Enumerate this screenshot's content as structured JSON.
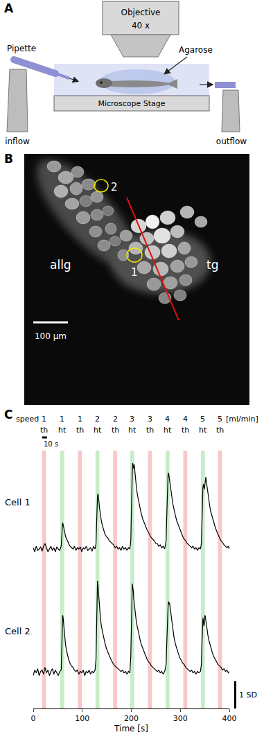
{
  "panel_a": {
    "label": "A",
    "objective": [
      "Objective",
      "40 x"
    ],
    "pipette": "Pipette",
    "agarose": "Agarose",
    "inflow": "inflow",
    "stage": "Microscope Stage",
    "outflow": "outflow"
  },
  "panel_b": {
    "label": "B",
    "rois": [
      {
        "label": "2"
      },
      {
        "label": "1"
      }
    ],
    "regions": [
      "allg",
      "tg"
    ],
    "scale_bar": {
      "length": 100,
      "label": "100 µm"
    }
  },
  "panel_c": {
    "label": "C"
  },
  "chart_data": {
    "type": "line",
    "x_label": "Time [s]",
    "xlim": [
      0,
      400
    ],
    "xticks": [
      0,
      100,
      200,
      300,
      400
    ],
    "ylim": [
      -1.1,
      3.55
    ],
    "yticks": [],
    "y2lim": [
      -1.3,
      3.4
    ],
    "y2ticks": [],
    "tick_labels": "x",
    "grid": false,
    "speed_label": "speed",
    "speed_unit": "[ml/min]",
    "stimuli": [
      {
        "start": 18,
        "end": 26,
        "label": "th",
        "speed": 1,
        "color": "#f8c8c8"
      },
      {
        "start": 55,
        "end": 63,
        "label": "ht",
        "speed": 1,
        "color": "#c8ecc8"
      },
      {
        "start": 91,
        "end": 99,
        "label": "th",
        "speed": 1,
        "color": "#f8c8c8"
      },
      {
        "start": 127,
        "end": 135,
        "label": "ht",
        "speed": 2,
        "color": "#c8ecc8"
      },
      {
        "start": 163,
        "end": 171,
        "label": "th",
        "speed": 2,
        "color": "#f8c8c8"
      },
      {
        "start": 198,
        "end": 206,
        "label": "ht",
        "speed": 3,
        "color": "#c8ecc8"
      },
      {
        "start": 234,
        "end": 242,
        "label": "th",
        "speed": 3,
        "color": "#f8c8c8"
      },
      {
        "start": 270,
        "end": 278,
        "label": "ht",
        "speed": 4,
        "color": "#c8ecc8"
      },
      {
        "start": 306,
        "end": 314,
        "label": "th",
        "speed": 4,
        "color": "#f8c8c8"
      },
      {
        "start": 342,
        "end": 350,
        "label": "ht",
        "speed": 5,
        "color": "#c8ecc8"
      },
      {
        "start": 377,
        "end": 385,
        "label": "th",
        "speed": 5,
        "color": "#f8c8c8"
      }
    ],
    "time_scale_bar": {
      "length": 10,
      "label": "10 s"
    },
    "value_scale_bar": {
      "length": 1,
      "label": "1 SD",
      "axis": "y2"
    },
    "x": [
      0,
      3,
      6,
      9,
      12,
      15,
      18,
      21,
      24,
      27,
      30,
      33,
      36,
      39,
      42,
      45,
      48,
      51,
      54,
      57,
      58,
      59,
      60,
      61,
      62,
      63,
      64,
      66,
      68,
      70,
      72,
      75,
      78,
      81,
      84,
      87,
      90,
      93,
      96,
      99,
      102,
      105,
      108,
      111,
      114,
      117,
      120,
      123,
      126,
      128,
      129,
      130,
      131,
      132,
      133,
      134,
      135,
      137,
      139,
      141,
      143,
      146,
      149,
      152,
      155,
      158,
      161,
      164,
      167,
      170,
      173,
      176,
      179,
      182,
      185,
      188,
      191,
      194,
      197,
      199,
      200,
      201,
      202,
      203,
      204,
      205,
      206,
      207,
      208,
      210,
      212,
      214,
      216,
      218,
      220,
      223,
      226,
      229,
      232,
      235,
      238,
      241,
      244,
      247,
      250,
      253,
      256,
      259,
      262,
      265,
      268,
      271,
      272,
      273,
      274,
      275,
      276,
      277,
      278,
      279,
      281,
      283,
      285,
      287,
      290,
      293,
      296,
      299,
      302,
      305,
      308,
      311,
      314,
      317,
      320,
      323,
      326,
      329,
      332,
      335,
      338,
      341,
      343,
      344,
      345,
      346,
      347,
      348,
      349,
      350,
      351,
      352,
      353,
      354,
      356,
      358,
      360,
      362,
      365,
      368,
      371,
      374,
      377,
      380,
      383,
      386,
      389,
      392,
      395,
      398,
      400
    ],
    "series": [
      {
        "name": "Cell 1",
        "color": "#000000",
        "axis": "y",
        "values": [
          0.05,
          -0.1,
          0.1,
          -0.05,
          0,
          0.08,
          -0.08,
          0.1,
          0.2,
          0.05,
          -0.1,
          0,
          0.1,
          -0.05,
          0.05,
          -0.1,
          0.08,
          0,
          -0.05,
          0.1,
          0.3,
          0.7,
          0.95,
          0.9,
          0.8,
          0.7,
          0.6,
          0.45,
          0.35,
          0.3,
          0.2,
          0.1,
          0.05,
          0,
          0.1,
          -0.05,
          0.05,
          0,
          0.08,
          -0.1,
          0.05,
          0,
          0.1,
          -0.05,
          0,
          0.05,
          -0.08,
          0.1,
          0,
          0.2,
          0.8,
          1.5,
          1.9,
          2.0,
          1.9,
          1.7,
          1.5,
          1.2,
          1.0,
          0.85,
          0.7,
          0.55,
          0.45,
          0.4,
          0.3,
          0.25,
          0.2,
          0.15,
          0.05,
          0.1,
          0,
          0.05,
          -0.05,
          0.1,
          0,
          0.05,
          -0.05,
          0.05,
          0,
          0.3,
          1.2,
          2.2,
          2.8,
          3.1,
          3.0,
          2.9,
          3.05,
          2.8,
          2.6,
          2.3,
          2.0,
          1.8,
          1.6,
          1.45,
          1.3,
          1.1,
          0.95,
          0.8,
          0.7,
          0.6,
          0.5,
          0.4,
          0.35,
          0.3,
          0.2,
          0.2,
          0.1,
          0.15,
          0.05,
          0.1,
          0,
          0.3,
          1.0,
          1.8,
          2.4,
          2.7,
          2.75,
          2.6,
          2.55,
          2.4,
          2.1,
          1.85,
          1.6,
          1.4,
          1.2,
          1.0,
          0.85,
          0.7,
          0.55,
          0.45,
          0.35,
          0.3,
          0.2,
          0.15,
          0.1,
          0.05,
          0.1,
          0,
          0.05,
          -0.05,
          0.05,
          0,
          0.2,
          0.9,
          1.7,
          2.2,
          2.35,
          2.25,
          2.15,
          2.3,
          2.55,
          2.6,
          2.45,
          2.3,
          2.0,
          1.75,
          1.55,
          1.35,
          1.15,
          0.95,
          0.8,
          0.65,
          0.5,
          0.4,
          0.3,
          0.25,
          0.15,
          0.1,
          0.05,
          0.1,
          0
        ]
      },
      {
        "name": "Cell 2",
        "color": "#000000",
        "axis": "y2",
        "values": [
          -0.1,
          0.1,
          0,
          0.15,
          -0.1,
          0.05,
          0.1,
          -0.05,
          0.2,
          0,
          0.1,
          -0.1,
          0.05,
          0.15,
          -0.05,
          0.1,
          0,
          -0.1,
          0.05,
          0.1,
          0.8,
          1.7,
          2.1,
          2.0,
          1.8,
          1.5,
          1.3,
          1.0,
          0.8,
          0.6,
          0.5,
          0.35,
          0.25,
          0.2,
          0.1,
          0.05,
          0.1,
          -0.05,
          0.05,
          0,
          0.1,
          -0.1,
          0.05,
          0,
          0.1,
          -0.05,
          0.05,
          0,
          0.1,
          0.5,
          1.8,
          3.0,
          3.35,
          3.2,
          2.9,
          2.6,
          2.3,
          2.0,
          1.7,
          1.5,
          1.3,
          1.1,
          0.9,
          0.75,
          0.6,
          0.5,
          0.4,
          0.3,
          0.25,
          0.2,
          0.15,
          0.1,
          0.05,
          0.1,
          0,
          0.05,
          -0.05,
          0.05,
          0,
          0.6,
          1.8,
          2.8,
          3.25,
          3.1,
          3.0,
          2.7,
          2.5,
          2.3,
          2.1,
          1.9,
          1.7,
          1.5,
          1.35,
          1.2,
          1.05,
          0.9,
          0.75,
          0.6,
          0.5,
          0.4,
          0.35,
          0.25,
          0.2,
          0.15,
          0.1,
          0.05,
          0.1,
          0,
          0.05,
          -0.05,
          0.05,
          0.3,
          0.9,
          1.6,
          2.1,
          2.4,
          2.6,
          2.5,
          2.55,
          2.4,
          2.1,
          1.8,
          1.5,
          1.3,
          1.05,
          0.85,
          0.7,
          0.55,
          0.45,
          0.35,
          0.3,
          0.2,
          0.15,
          0.1,
          0.05,
          0.1,
          0,
          0.05,
          -0.05,
          0.05,
          0,
          0.05,
          0.3,
          1.0,
          1.7,
          2.0,
          1.9,
          1.7,
          1.8,
          2.1,
          2.05,
          1.9,
          1.75,
          1.6,
          1.4,
          1.2,
          1.05,
          0.9,
          0.75,
          0.6,
          0.5,
          0.4,
          0.3,
          0.25,
          0.2,
          0.1,
          0.15,
          0.05,
          0.1,
          0,
          0.05
        ]
      }
    ]
  }
}
